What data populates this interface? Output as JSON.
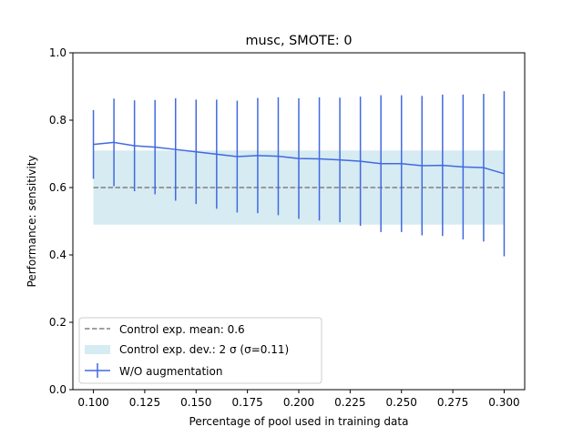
{
  "chart_data": {
    "type": "line",
    "title": "musc, SMOTE: 0",
    "xlabel": "Percentage of pool used in training data",
    "ylabel": "Performance: sensitivity",
    "xlim": [
      0.09,
      0.31
    ],
    "ylim": [
      0.0,
      1.0
    ],
    "x_ticks": [
      0.1,
      0.125,
      0.15,
      0.175,
      0.2,
      0.225,
      0.25,
      0.275,
      0.3
    ],
    "x_tick_labels": [
      "0.100",
      "0.125",
      "0.150",
      "0.175",
      "0.200",
      "0.225",
      "0.250",
      "0.275",
      "0.300"
    ],
    "y_ticks": [
      0.0,
      0.2,
      0.4,
      0.6,
      0.8,
      1.0
    ],
    "y_tick_labels": [
      "0.0",
      "0.2",
      "0.4",
      "0.6",
      "0.8",
      "1.0"
    ],
    "grid": false,
    "legend_position": "lower-left",
    "control": {
      "mean": 0.6,
      "band_low": 0.49,
      "band_high": 0.71,
      "x_range": [
        0.1,
        0.3
      ],
      "mean_label": "Control exp. mean: 0.6",
      "band_label": "Control exp. dev.: 2 σ (σ=0.11)",
      "mean_color": "#808080",
      "band_color": "#add8e6"
    },
    "series": [
      {
        "name": "W/O augmentation",
        "color": "#4169e1",
        "x": [
          0.1,
          0.11,
          0.12,
          0.13,
          0.14,
          0.15,
          0.16,
          0.17,
          0.18,
          0.19,
          0.2,
          0.21,
          0.22,
          0.23,
          0.24,
          0.25,
          0.26,
          0.27,
          0.28,
          0.29,
          0.3
        ],
        "y": [
          0.728,
          0.734,
          0.724,
          0.72,
          0.713,
          0.706,
          0.699,
          0.692,
          0.695,
          0.693,
          0.686,
          0.685,
          0.682,
          0.678,
          0.671,
          0.671,
          0.665,
          0.666,
          0.661,
          0.659,
          0.641
        ],
        "err": [
          0.102,
          0.13,
          0.135,
          0.14,
          0.152,
          0.155,
          0.162,
          0.166,
          0.171,
          0.175,
          0.179,
          0.183,
          0.185,
          0.192,
          0.203,
          0.203,
          0.207,
          0.21,
          0.215,
          0.219,
          0.245
        ]
      }
    ]
  }
}
